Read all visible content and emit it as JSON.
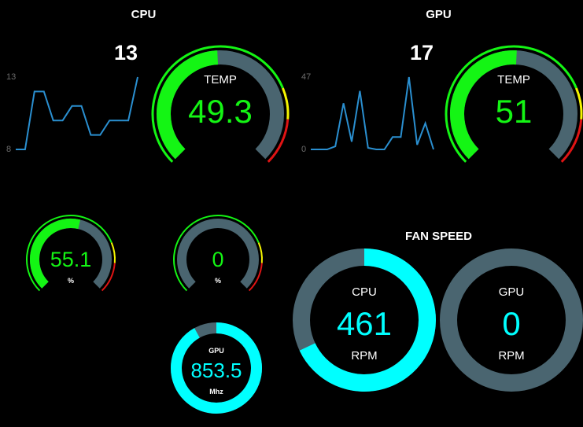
{
  "colors": {
    "green": "#14f514",
    "track": "#4a6570",
    "yellow": "#f5f500",
    "red": "#e01414",
    "cyan": "#00ffff",
    "spark": "#2a8fd0",
    "axis": "#6b6b6b"
  },
  "cpu": {
    "title": "CPU",
    "current_usage": "13",
    "spark_max": "13",
    "spark_min": "8",
    "spark_values": [
      8,
      8,
      12,
      12,
      10,
      10,
      11,
      11,
      9,
      9,
      10,
      10,
      10,
      13
    ],
    "temp": {
      "label": "TEMP",
      "value": "49.3",
      "fraction": 0.49
    },
    "load": {
      "value": "55.1",
      "unit": "%",
      "fraction": 0.55
    },
    "gauge2": {
      "value": "0",
      "unit": "%",
      "fraction": 0.0
    }
  },
  "gpu": {
    "title": "GPU",
    "current_usage": "17",
    "spark_max": "47",
    "spark_min": "0",
    "spark_values": [
      0,
      0,
      0,
      2,
      30,
      5,
      38,
      1,
      0,
      0,
      8,
      8,
      47,
      3,
      17,
      0
    ],
    "temp": {
      "label": "TEMP",
      "value": "51",
      "fraction": 0.51
    },
    "clock": {
      "label": "GPU",
      "value": "853.5",
      "unit": "Mhz",
      "fraction": 0.92
    }
  },
  "fan": {
    "title": "FAN SPEED",
    "cpu": {
      "label": "CPU",
      "value": "461",
      "unit": "RPM",
      "fraction": 0.68
    },
    "gpu": {
      "label": "GPU",
      "value": "0",
      "unit": "RPM",
      "fraction": 0.0
    }
  }
}
